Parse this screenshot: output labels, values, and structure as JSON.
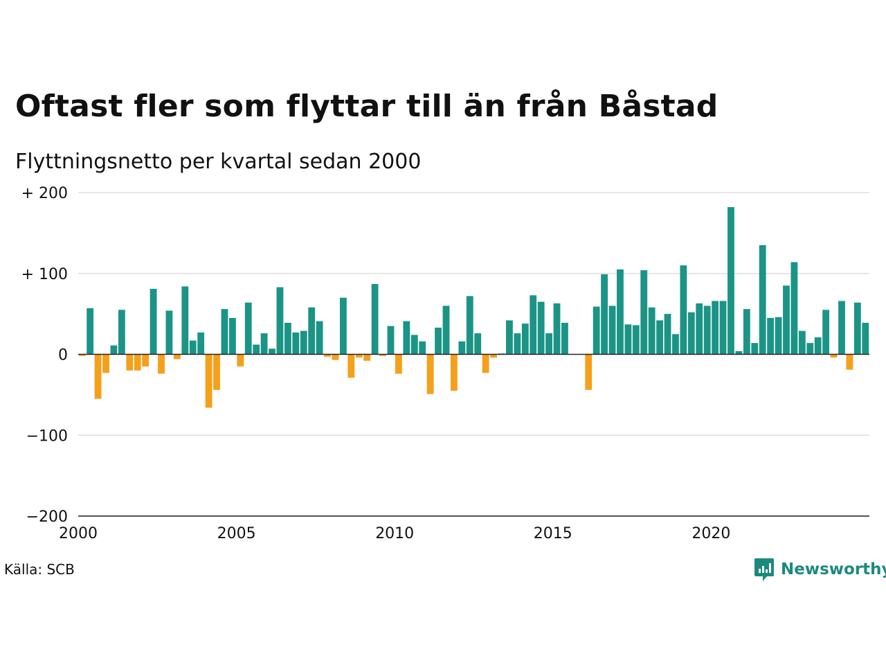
{
  "chart_data": {
    "type": "bar",
    "title": "Oftast fler som flyttar till än från Båstad",
    "subtitle": "Flyttningsnetto per kvartal sedan 2000",
    "xlabel": "",
    "ylabel": "",
    "ylim": [
      -200,
      200
    ],
    "yticks": [
      {
        "value": 200,
        "label": "+ 200"
      },
      {
        "value": 100,
        "label": "+ 100"
      },
      {
        "value": 0,
        "label": "0"
      },
      {
        "value": -100,
        "label": "−100"
      },
      {
        "value": -200,
        "label": "−200"
      }
    ],
    "xticks": [
      "2000",
      "2005",
      "2010",
      "2015",
      "2020"
    ],
    "grid": true,
    "start_year": 2000,
    "periods_per_year": 4,
    "colors": {
      "positive": "#1b9486",
      "negative": "#f5a01a",
      "grid": "#dddddd",
      "axis": "#222222"
    },
    "values": [
      -2,
      57,
      -55,
      -23,
      11,
      55,
      -20,
      -20,
      -15,
      81,
      -24,
      54,
      -6,
      84,
      17,
      27,
      -66,
      -44,
      56,
      45,
      -15,
      64,
      12,
      26,
      7,
      83,
      39,
      27,
      29,
      58,
      41,
      -3,
      -7,
      70,
      -29,
      -4,
      -8,
      87,
      -2,
      35,
      -24,
      41,
      24,
      16,
      -49,
      33,
      60,
      -45,
      16,
      72,
      26,
      -23,
      -4,
      1,
      42,
      26,
      38,
      73,
      65,
      26,
      63,
      39,
      0,
      0,
      -44,
      59,
      99,
      60,
      105,
      37,
      36,
      104,
      58,
      42,
      50,
      25,
      110,
      52,
      63,
      60,
      66,
      66,
      182,
      4,
      56,
      14,
      135,
      45,
      46,
      85,
      114,
      29,
      14,
      21,
      55,
      -4,
      66,
      -19,
      64,
      39
    ]
  },
  "footer": {
    "source": "Källa: SCB",
    "brand": "Newsworthy",
    "brand_icon": "newsworthy-chart-logo-icon"
  }
}
